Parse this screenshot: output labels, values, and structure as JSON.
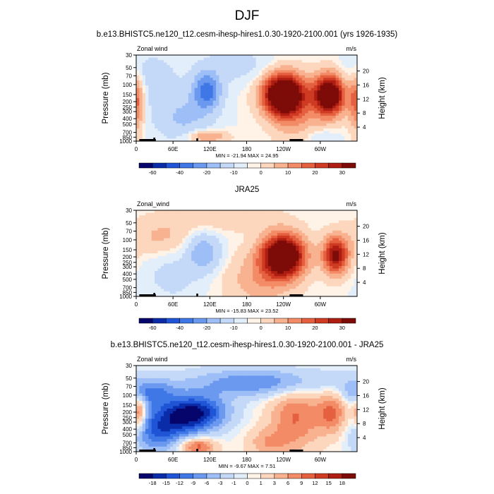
{
  "title": "DJF",
  "chart_data": [
    {
      "type": "heatmap",
      "panel_title": "b.e13.BHISTC5.ne120_t12.cesm-ihesp-hires1.0.30-1920-2100.001 (yrs 1926-1935)",
      "left_label": "Zonal wind",
      "units": "m/s",
      "ylabel": "Pressure (mb)",
      "ylabel_right": "Height (km)",
      "pressure_ticks": [
        "30",
        "50",
        "70",
        "100",
        "150",
        "200",
        "250",
        "300",
        "400",
        "500",
        "700",
        "850",
        "1000"
      ],
      "height_ticks": [
        "4",
        "8",
        "12",
        "16",
        "20"
      ],
      "x_ticks": [
        "0",
        "60E",
        "120E",
        "180",
        "120W",
        "60W"
      ],
      "stats": "MIN = -21.94   MAX = 24.95",
      "colorbar_labels": [
        "-60",
        "-40",
        "-20",
        "-10",
        "0",
        "10",
        "20",
        "30"
      ],
      "colorbar_colors": [
        "#05056b",
        "#0b2ca8",
        "#1f54d6",
        "#3f77e6",
        "#6b99ef",
        "#9dbef6",
        "#c4d8f8",
        "#e3eefb",
        "#fff2e6",
        "#fcd6bd",
        "#f8b290",
        "#f28b66",
        "#e5603f",
        "#cf3a22",
        "#ad1d12",
        "#7d0b07"
      ],
      "xlim": [
        0,
        360
      ],
      "blobs": [
        {
          "lon": 15,
          "p": 60,
          "v": -4,
          "sx": 30,
          "sy": 0.55
        },
        {
          "lon": 40,
          "p": 180,
          "v": -3,
          "sx": 30,
          "sy": 0.8
        },
        {
          "lon": 115,
          "p": 130,
          "v": -19,
          "sx": 16,
          "sy": 0.55
        },
        {
          "lon": 80,
          "p": 420,
          "v": -7,
          "sx": 28,
          "sy": 0.7
        },
        {
          "lon": 165,
          "p": 45,
          "v": -4,
          "sx": 40,
          "sy": 0.5
        },
        {
          "lon": 0,
          "p": 180,
          "v": 10,
          "sx": 10,
          "sy": 0.9
        },
        {
          "lon": 240,
          "p": 150,
          "v": 25,
          "sx": 24,
          "sy": 0.62
        },
        {
          "lon": 315,
          "p": 150,
          "v": 22,
          "sx": 18,
          "sy": 0.6
        },
        {
          "lon": 265,
          "p": 420,
          "v": 4,
          "sx": 30,
          "sy": 0.9
        },
        {
          "lon": 110,
          "p": 820,
          "v": 8,
          "sx": 25,
          "sy": 0.2
        },
        {
          "lon": 300,
          "p": 850,
          "v": -3,
          "sx": 20,
          "sy": 0.25
        }
      ]
    },
    {
      "type": "heatmap",
      "panel_title": "JRA25",
      "left_label": "Zonal_wind",
      "units": "m/s",
      "ylabel": "Pressure (mb)",
      "ylabel_right": "Height (km)",
      "pressure_ticks": [
        "30",
        "50",
        "70",
        "100",
        "150",
        "200",
        "250",
        "300",
        "400",
        "500",
        "700",
        "850",
        "1000"
      ],
      "height_ticks": [
        "4",
        "8",
        "12",
        "16",
        "20"
      ],
      "x_ticks": [
        "0",
        "60E",
        "120E",
        "180",
        "120W",
        "60W"
      ],
      "stats": "MIN = -15.83   MAX = 23.52",
      "colorbar_labels": [
        "-60",
        "-40",
        "-20",
        "-10",
        "0",
        "10",
        "20",
        "30"
      ],
      "colorbar_colors": [
        "#05056b",
        "#0b2ca8",
        "#1f54d6",
        "#3f77e6",
        "#6b99ef",
        "#9dbef6",
        "#c4d8f8",
        "#e3eefb",
        "#fff2e6",
        "#fcd6bd",
        "#f8b290",
        "#f28b66",
        "#e5603f",
        "#cf3a22",
        "#ad1d12",
        "#7d0b07"
      ],
      "xlim": [
        0,
        360
      ],
      "blobs": [
        {
          "lon": 110,
          "p": 170,
          "v": -12,
          "sx": 18,
          "sy": 0.5
        },
        {
          "lon": 60,
          "p": 420,
          "v": -4,
          "sx": 30,
          "sy": 0.7
        },
        {
          "lon": 40,
          "p": 90,
          "v": 4,
          "sx": 40,
          "sy": 0.6
        },
        {
          "lon": 240,
          "p": 190,
          "v": 23,
          "sx": 25,
          "sy": 0.62
        },
        {
          "lon": 325,
          "p": 190,
          "v": 16,
          "sx": 15,
          "sy": 0.55
        },
        {
          "lon": 200,
          "p": 500,
          "v": 5,
          "sx": 40,
          "sy": 0.8
        },
        {
          "lon": 150,
          "p": 40,
          "v": 3,
          "sx": 60,
          "sy": 0.4
        }
      ]
    },
    {
      "type": "heatmap",
      "panel_title": "b.e13.BHISTC5.ne120_t12.cesm-ihesp-hires1.0.30-1920-2100.001 - JRA25",
      "left_label": "Zonal wind",
      "units": "m/s",
      "ylabel": "Pressure (mb)",
      "ylabel_right": "Height (km)",
      "pressure_ticks": [
        "30",
        "50",
        "70",
        "100",
        "150",
        "200",
        "250",
        "300",
        "400",
        "500",
        "700",
        "850",
        "1000"
      ],
      "height_ticks": [
        "4",
        "8",
        "12",
        "16",
        "20"
      ],
      "x_ticks": [
        "0",
        "60E",
        "120E",
        "180",
        "120W",
        "60W"
      ],
      "stats": "MIN =  -9.67   MAX =   7.51",
      "colorbar_labels": [
        "-18",
        "-15",
        "-12",
        "-9",
        "-6",
        "-3",
        "-1",
        "0",
        "1",
        "3",
        "6",
        "9",
        "12",
        "15",
        "18"
      ],
      "colorbar_colors": [
        "#05056b",
        "#0b2ca8",
        "#1f54d6",
        "#3f77e6",
        "#6b99ef",
        "#9dbef6",
        "#c4d8f8",
        "#e3eefb",
        "#fff2e6",
        "#fcd6bd",
        "#f8b290",
        "#f28b66",
        "#e5603f",
        "#cf3a22",
        "#ad1d12",
        "#7d0b07"
      ],
      "xlim": [
        0,
        360
      ],
      "blobs": [
        {
          "lon": 100,
          "p": 200,
          "v": -8,
          "sx": 35,
          "sy": 0.5
        },
        {
          "lon": 60,
          "p": 300,
          "v": -5,
          "sx": 35,
          "sy": 0.6
        },
        {
          "lon": 200,
          "p": 60,
          "v": -5,
          "sx": 80,
          "sy": 0.4
        },
        {
          "lon": 30,
          "p": 500,
          "v": -4,
          "sx": 25,
          "sy": 0.6
        },
        {
          "lon": 20,
          "p": 90,
          "v": -5,
          "sx": 30,
          "sy": 0.4
        },
        {
          "lon": 260,
          "p": 250,
          "v": 5,
          "sx": 30,
          "sy": 0.9
        },
        {
          "lon": 320,
          "p": 200,
          "v": 5,
          "sx": 18,
          "sy": 0.6
        },
        {
          "lon": 5,
          "p": 200,
          "v": 6,
          "sx": 8,
          "sy": 0.5
        },
        {
          "lon": 100,
          "p": 800,
          "v": 6,
          "sx": 20,
          "sy": 0.25
        },
        {
          "lon": 215,
          "p": 700,
          "v": 3,
          "sx": 25,
          "sy": 0.4
        }
      ]
    }
  ]
}
